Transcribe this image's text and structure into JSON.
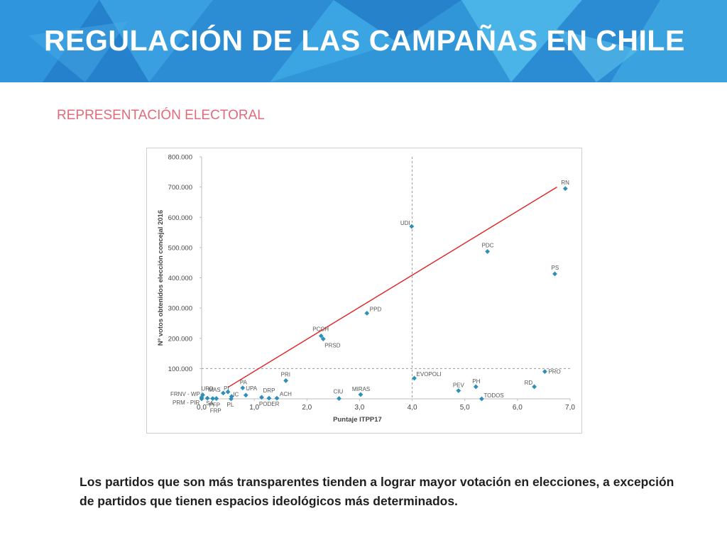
{
  "header": {
    "title": "REGULACIÓN DE LAS CAMPAÑAS EN CHILE"
  },
  "section": {
    "subtitle": "REPRESENTACIÓN ELECTORAL"
  },
  "caption": "Los partidos que son más transparentes tienden a lograr mayor votación en elecciones, a excepción de partidos que tienen espacios ideológicos más determinados.",
  "colors": {
    "header_blue": "#2a8ad6",
    "title_text": "#ffffff",
    "subtitle_text": "#e36a7a",
    "point": "#2e8fb8",
    "trend_line": "#e02020",
    "reference_line": "#999999"
  },
  "chart_data": {
    "type": "scatter",
    "title": "",
    "xlabel": "Puntaje ITPP17",
    "ylabel": "Nº votos obtenidos elección concejal 2016",
    "xlim": [
      0,
      7
    ],
    "ylim": [
      0,
      800000
    ],
    "x_ticks": [
      "0,0",
      "1,0",
      "2,0",
      "3,0",
      "4,0",
      "5,0",
      "6,0",
      "7,0"
    ],
    "y_ticks": [
      "100.000",
      "200.000",
      "300.000",
      "400.000",
      "500.000",
      "600.000",
      "700.000",
      "800.000"
    ],
    "grid": false,
    "reference_lines": {
      "vertical_x": 4.0,
      "horizontal_y": 100000
    },
    "trendline": {
      "x": [
        0.5,
        6.75
      ],
      "y": [
        38000,
        700000
      ]
    },
    "points": [
      {
        "label": "RN",
        "x": 6.91,
        "y": 695000
      },
      {
        "label": "UDI",
        "x": 3.99,
        "y": 570000
      },
      {
        "label": "PDC",
        "x": 5.43,
        "y": 487000
      },
      {
        "label": "PS",
        "x": 6.71,
        "y": 413000
      },
      {
        "label": "PPD",
        "x": 3.14,
        "y": 283000
      },
      {
        "label": "PCCH",
        "x": 2.27,
        "y": 208000
      },
      {
        "label": "PRSD",
        "x": 2.31,
        "y": 198000
      },
      {
        "label": "PRO",
        "x": 6.52,
        "y": 90000
      },
      {
        "label": "EVOPOLI",
        "x": 4.04,
        "y": 68000
      },
      {
        "label": "PRI",
        "x": 1.6,
        "y": 60000
      },
      {
        "label": "RD",
        "x": 6.32,
        "y": 40000
      },
      {
        "label": "PH",
        "x": 5.21,
        "y": 40000
      },
      {
        "label": "PA",
        "x": 0.78,
        "y": 36000
      },
      {
        "label": "PEV",
        "x": 4.88,
        "y": 27000
      },
      {
        "label": "PI",
        "x": 0.5,
        "y": 23000
      },
      {
        "label": "MAS",
        "x": 0.41,
        "y": 19000
      },
      {
        "label": "URD",
        "x": 0.02,
        "y": 13000
      },
      {
        "label": "IC",
        "x": 0.57,
        "y": 8000
      },
      {
        "label": "UPA",
        "x": 0.84,
        "y": 12000
      },
      {
        "label": "DRP",
        "x": 1.14,
        "y": 5000
      },
      {
        "label": "MIRAS",
        "x": 3.02,
        "y": 14000
      },
      {
        "label": "FRNV - WP",
        "x": 0.0,
        "y": 5000
      },
      {
        "label": "PRM - PIR",
        "x": 0.0,
        "y": 0
      },
      {
        "label": "ACH",
        "x": 1.43,
        "y": 2000
      },
      {
        "label": "CIU",
        "x": 2.61,
        "y": 1000
      },
      {
        "label": "TODOS",
        "x": 5.32,
        "y": 0
      },
      {
        "label": "SA",
        "x": 0.11,
        "y": 2000
      },
      {
        "label": "PFP",
        "x": 0.21,
        "y": 1000
      },
      {
        "label": "FRP",
        "x": 0.28,
        "y": 1000
      },
      {
        "label": "PL",
        "x": 0.56,
        "y": 0
      },
      {
        "label": "PODER",
        "x": 1.28,
        "y": 2000
      }
    ]
  }
}
